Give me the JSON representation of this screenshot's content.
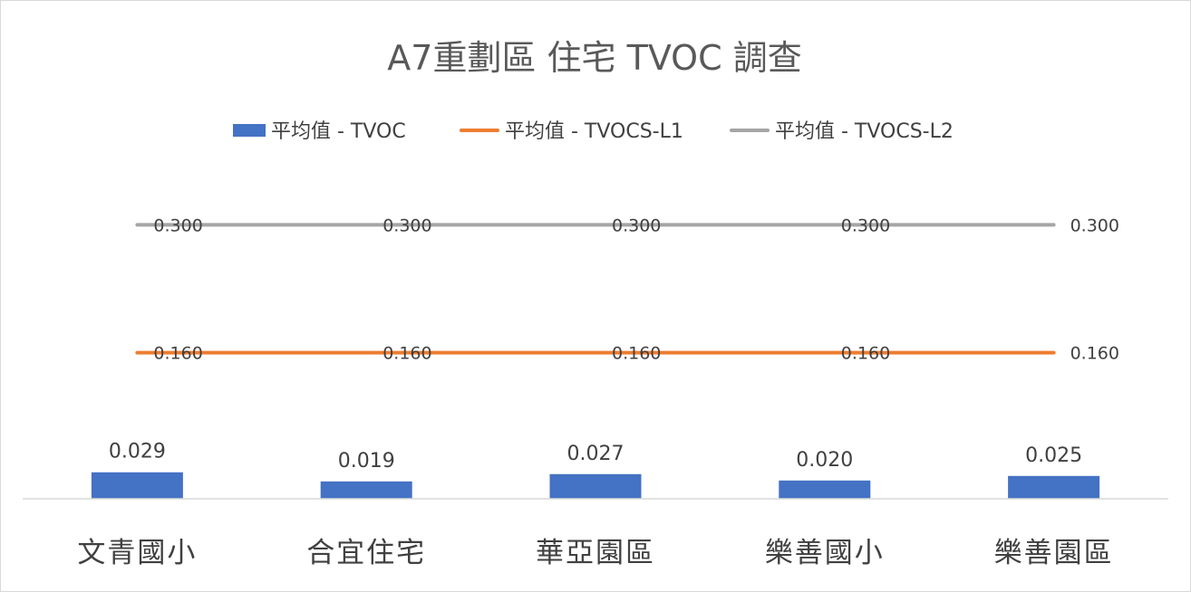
{
  "chart_data": {
    "type": "bar",
    "title": "A7重劃區 住宅 TVOC 調查",
    "categories": [
      "文青國小",
      "合宜住宅",
      "華亞園區",
      "樂善國小",
      "樂善園區"
    ],
    "series": [
      {
        "name": "平均值 - TVOC",
        "kind": "bar",
        "color": "#4472c4",
        "values": [
          0.029,
          0.019,
          0.027,
          0.02,
          0.025
        ],
        "labels": [
          "0.029",
          "0.019",
          "0.027",
          "0.020",
          "0.025"
        ]
      },
      {
        "name": "平均值 - TVOCS-L1",
        "kind": "line",
        "color": "#ed7d31",
        "values": [
          0.16,
          0.16,
          0.16,
          0.16,
          0.16
        ],
        "labels": [
          "0.160",
          "0.160",
          "0.160",
          "0.160",
          "0.160"
        ]
      },
      {
        "name": "平均值 - TVOCS-L2",
        "kind": "line",
        "color": "#a5a5a5",
        "values": [
          0.3,
          0.3,
          0.3,
          0.3,
          0.3
        ],
        "labels": [
          "0.300",
          "0.300",
          "0.300",
          "0.300",
          "0.300"
        ]
      }
    ],
    "ylim": [
      0,
      0.347
    ],
    "grid": false,
    "legend_position": "top"
  }
}
